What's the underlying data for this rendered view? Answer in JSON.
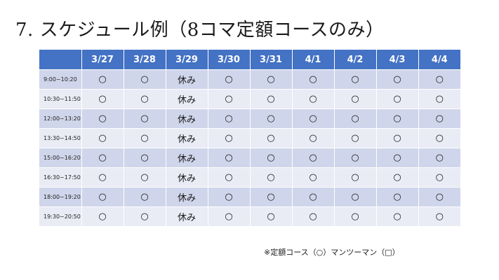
{
  "title": "7. スケジュール例（8コマ定額コースのみ）",
  "header": [
    "",
    "3/27",
    "3/28",
    "3/29",
    "3/30",
    "3/31",
    "4/1",
    "4/2",
    "4/3",
    "4/4"
  ],
  "rows": [
    {
      "time": "9:00~10:20",
      "cells": [
        "○",
        "○",
        "休み",
        "○",
        "○",
        "○",
        "○",
        "○",
        "○"
      ]
    },
    {
      "time": "10:30~11:50",
      "cells": [
        "○",
        "○",
        "休み",
        "○",
        "○",
        "○",
        "○",
        "○",
        "○"
      ]
    },
    {
      "time": "12:00~13:20",
      "cells": [
        "○",
        "○",
        "休み",
        "○",
        "○",
        "○",
        "○",
        "○",
        "○"
      ]
    },
    {
      "time": "13:30~14:50",
      "cells": [
        "○",
        "○",
        "休み",
        "○",
        "○",
        "○",
        "○",
        "○",
        "○"
      ]
    },
    {
      "time": "15:00~16:20",
      "cells": [
        "○",
        "○",
        "休み",
        "○",
        "○",
        "○",
        "○",
        "○",
        "○"
      ]
    },
    {
      "time": "16:30~17:50",
      "cells": [
        "○",
        "○",
        "休み",
        "○",
        "○",
        "○",
        "○",
        "○",
        "○"
      ]
    },
    {
      "time": "18:00~19:20",
      "cells": [
        "○",
        "○",
        "休み",
        "○",
        "○",
        "○",
        "○",
        "○",
        "○"
      ]
    },
    {
      "time": "19:30~20:50",
      "cells": [
        "○",
        "○",
        "休み",
        "○",
        "○",
        "○",
        "○",
        "○",
        "○"
      ]
    }
  ],
  "footnote": "※定額コース（○）マンツーマン（□）",
  "colors": {
    "header_bg": "#4472c4",
    "row_odd": "#cfd5ea",
    "row_even": "#e9ebf5"
  }
}
